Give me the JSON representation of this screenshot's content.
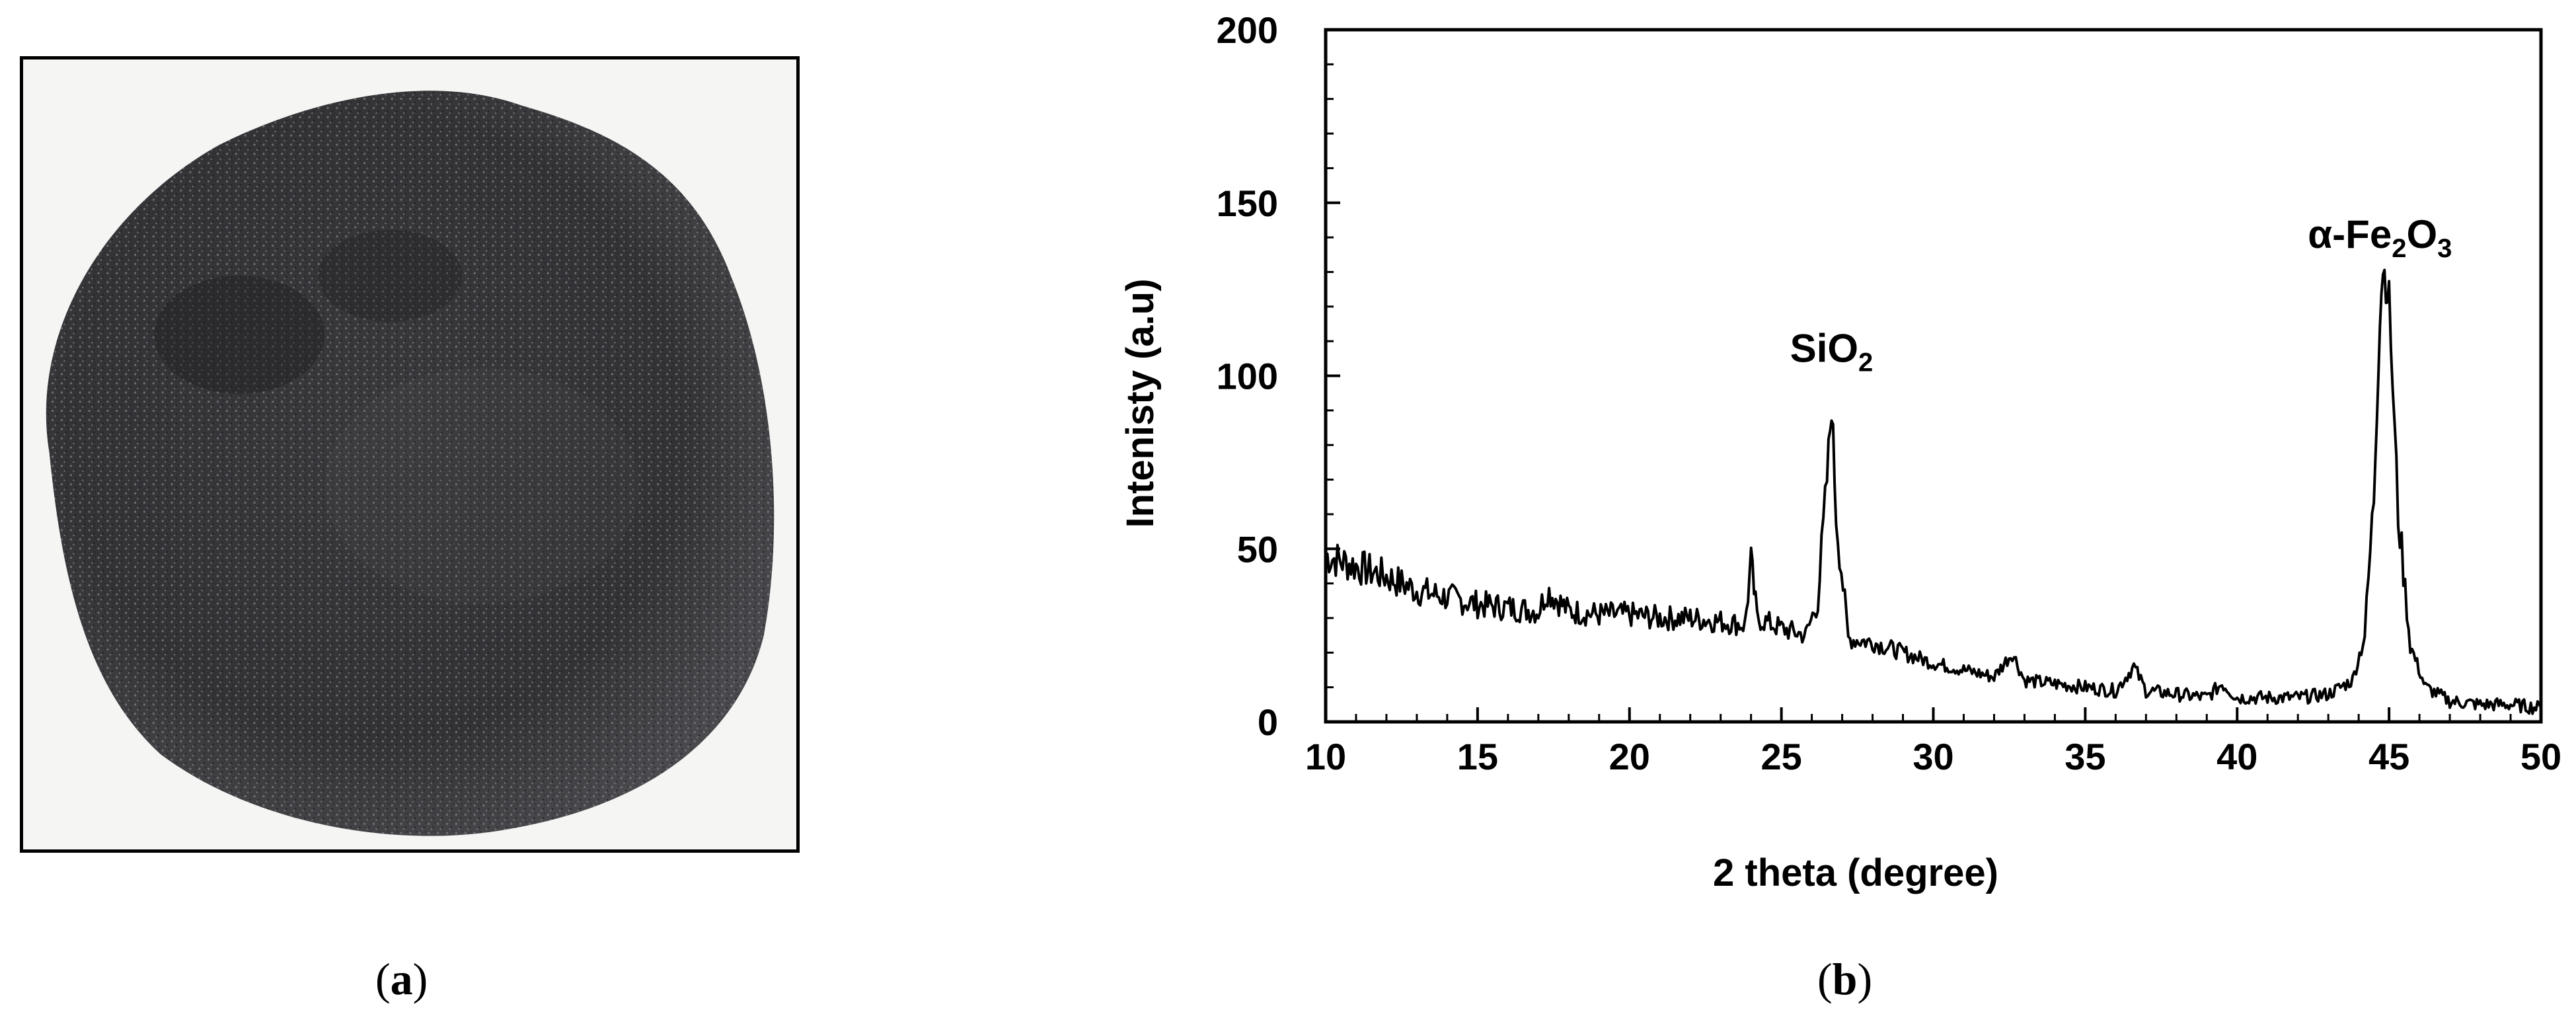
{
  "figure": {
    "panel_a_label": "a",
    "panel_b_label": "b"
  },
  "photo": {
    "subject": "dark gray granular powder pile",
    "colors": {
      "background": "#f5f5f4",
      "powder_dark": "#2a2a2c",
      "powder_mid": "#3d3d40",
      "powder_light": "#6e6e72"
    }
  },
  "chart_data": {
    "type": "line",
    "title": "",
    "xlabel": "2 theta (degree)",
    "ylabel": "Intenisty (a.u)",
    "xlim": [
      10,
      50
    ],
    "ylim": [
      0,
      200
    ],
    "xticks": [
      10,
      15,
      20,
      25,
      30,
      35,
      40,
      45,
      50
    ],
    "yticks": [
      0,
      50,
      100,
      150,
      200
    ],
    "grid": false,
    "line_color": "#000000",
    "series": [
      {
        "x": [
          10,
          11,
          12,
          13,
          14,
          15,
          16,
          17,
          17.3,
          18,
          19,
          20,
          21,
          22,
          23,
          23.8,
          24.0,
          24.2,
          25,
          25.8,
          26.2,
          26.5,
          26.65,
          26.8,
          27.2,
          28,
          29,
          30,
          31,
          32,
          32.6,
          33,
          34,
          35,
          36,
          36.6,
          37,
          38,
          39,
          39.5,
          40,
          41,
          42,
          43,
          43.8,
          44.2,
          44.5,
          44.7,
          44.8,
          45.0,
          45.3,
          45.7,
          46.2,
          47,
          48,
          49,
          50
        ],
        "y": [
          48,
          45,
          42,
          38,
          36,
          34,
          33,
          32,
          38,
          32,
          31,
          31,
          30,
          30,
          29,
          28,
          46,
          30,
          27,
          25,
          35,
          70,
          92,
          60,
          24,
          23,
          20,
          17,
          15,
          13,
          20,
          12,
          11,
          10,
          9,
          16,
          9,
          8,
          7,
          11,
          7,
          7,
          7,
          8,
          12,
          25,
          65,
          118,
          132,
          122,
          60,
          22,
          10,
          6,
          5,
          5,
          4
        ]
      }
    ],
    "annotations": [
      {
        "text_main": "SiO",
        "text_sub": "2",
        "x": 26.65,
        "y": 104
      },
      {
        "text_main": "α-Fe",
        "text_sub1": "2",
        "text_mid": "O",
        "text_sub2": "3",
        "x": 44.7,
        "y": 137
      }
    ]
  }
}
